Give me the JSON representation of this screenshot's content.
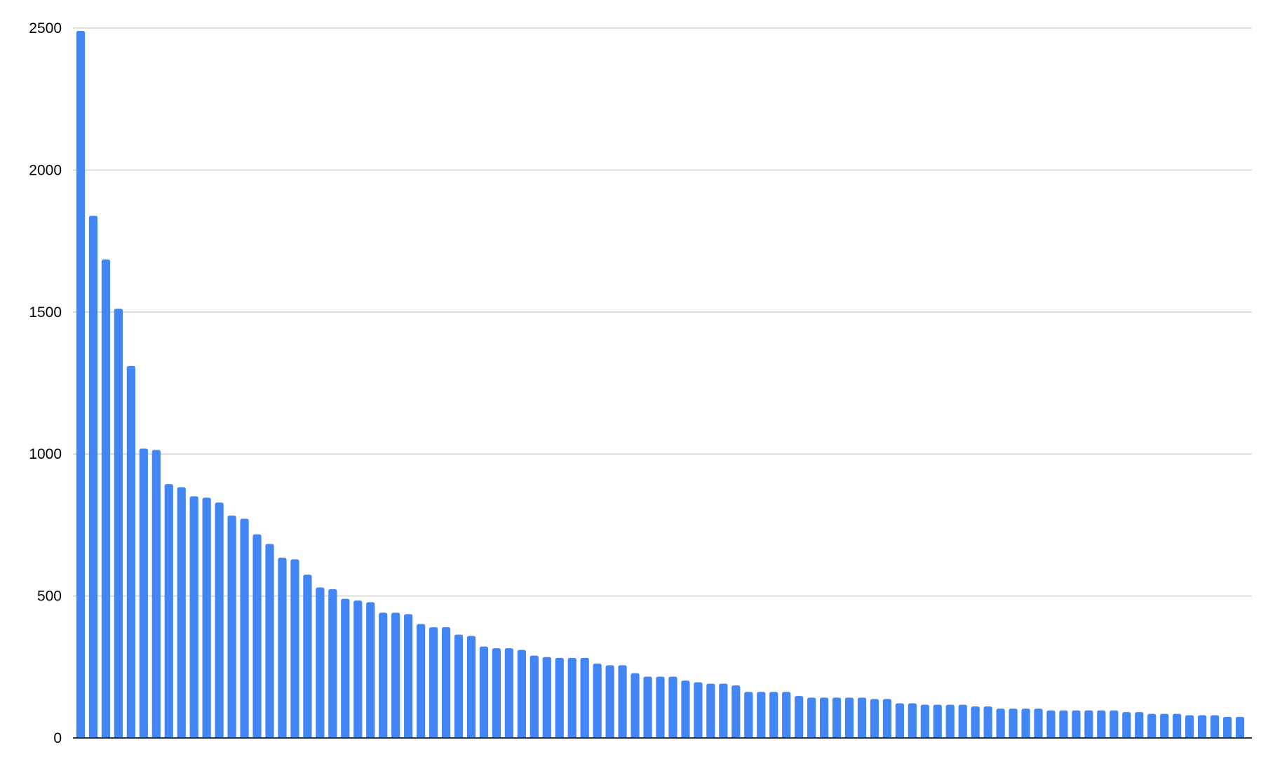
{
  "chart_data": {
    "type": "bar",
    "title": "",
    "xlabel": "",
    "ylabel": "",
    "ylim": [
      0,
      2500
    ],
    "yticks": [
      "0",
      "500",
      "1000",
      "1500",
      "2000",
      "2500"
    ],
    "grid": true,
    "legend": "none",
    "bar_color": "#4285f4",
    "values": [
      2490,
      1839,
      1685,
      1512,
      1310,
      1019,
      1014,
      894,
      883,
      851,
      846,
      829,
      783,
      772,
      717,
      683,
      635,
      629,
      575,
      530,
      524,
      490,
      484,
      478,
      441,
      441,
      436,
      401,
      390,
      390,
      364,
      359,
      322,
      316,
      316,
      310,
      290,
      285,
      282,
      282,
      282,
      262,
      256,
      256,
      228,
      216,
      216,
      216,
      202,
      196,
      191,
      191,
      185,
      162,
      162,
      162,
      162,
      148,
      142,
      142,
      142,
      142,
      142,
      137,
      137,
      122,
      122,
      117,
      117,
      117,
      117,
      111,
      111,
      103,
      103,
      103,
      103,
      97,
      97,
      97,
      97,
      97,
      97,
      91,
      91,
      85,
      85,
      85,
      80,
      80,
      80,
      74,
      74
    ]
  }
}
